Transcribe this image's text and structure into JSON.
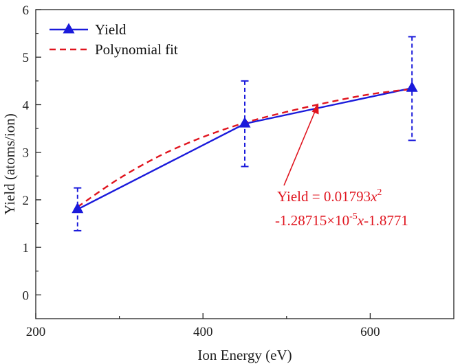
{
  "chart_data": {
    "type": "line",
    "xlabel": "Ion Energy (eV)",
    "ylabel": "Yield (atoms/ion)",
    "xlim": [
      200,
      700
    ],
    "ylim": [
      -0.5,
      6
    ],
    "x_ticks": [
      200,
      400,
      600
    ],
    "x_minor_ticks": [
      300,
      500
    ],
    "y_ticks": [
      0,
      1,
      2,
      3,
      4,
      5,
      6
    ],
    "grid": false,
    "legend_position": "top-left",
    "colors": {
      "data": "#1a1adb",
      "fit": "#e0141e",
      "axis": "#222222"
    },
    "series": [
      {
        "name": "Yield",
        "style": "solid line with triangle markers",
        "x": [
          250,
          450,
          650
        ],
        "y": [
          1.8,
          3.6,
          4.35
        ],
        "y_err_lower": [
          0.45,
          0.9,
          1.1
        ],
        "y_err_upper": [
          0.45,
          0.9,
          1.08
        ],
        "intermediate_points": [
          {
            "x": 535,
            "y": 3.92
          }
        ]
      },
      {
        "name": "Polynomial fit",
        "style": "dashed",
        "x": [
          250,
          300,
          350,
          400,
          450,
          500,
          550,
          600,
          650
        ],
        "y": [
          1.85,
          2.45,
          2.94,
          3.32,
          3.62,
          3.85,
          4.05,
          4.22,
          4.33
        ]
      }
    ],
    "annotation": {
      "line1_main": "Yield = 0.01793",
      "line1_var": "x",
      "line1_sup": "2",
      "line2_a": "-1.28715×10",
      "line2_sup": "-5",
      "line2_var": "x",
      "line2_b": "-1.8771",
      "arrow_target": {
        "x": 535,
        "y": 4.05
      }
    }
  }
}
